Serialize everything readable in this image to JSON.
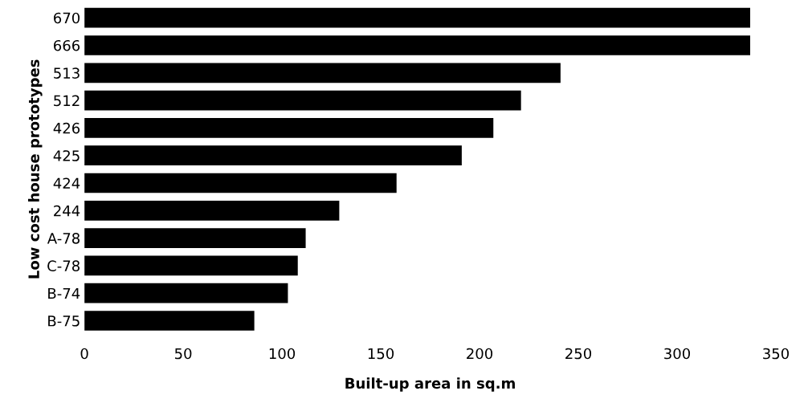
{
  "chart_data": {
    "type": "bar",
    "orientation": "horizontal",
    "xlabel": "Built-up area in sq.m",
    "ylabel": "Low cost house prototypes",
    "categories": [
      "670",
      "666",
      "513",
      "512",
      "426",
      "425",
      "424",
      "244",
      "A-78",
      "C-78",
      "B-74",
      "B-75"
    ],
    "values": [
      337,
      337,
      241,
      221,
      207,
      191,
      158,
      129,
      112,
      108,
      103,
      86
    ],
    "color": "#000000",
    "xlim": [
      0,
      350
    ],
    "xticks": [
      0,
      50,
      100,
      150,
      200,
      250,
      300,
      350
    ],
    "grid": false,
    "legend": false
  }
}
